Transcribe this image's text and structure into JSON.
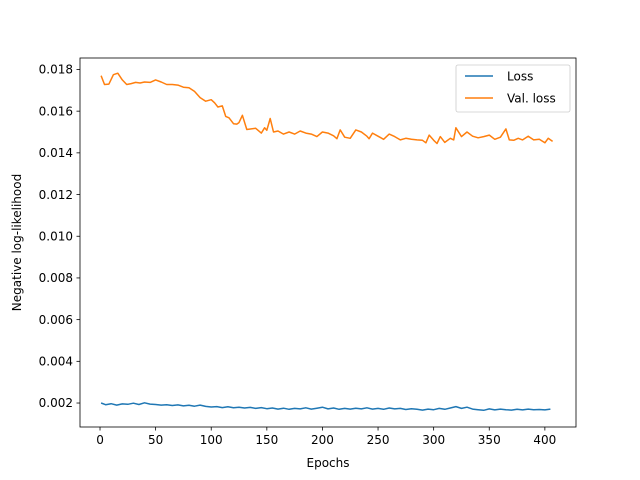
{
  "chart_data": {
    "type": "line",
    "title": "",
    "xlabel": "Epochs",
    "ylabel": "Negative log-likelihood",
    "xlim": [
      -18,
      428
    ],
    "ylim": [
      0.00085,
      0.01855
    ],
    "xticks": [
      0,
      50,
      100,
      150,
      200,
      250,
      300,
      350,
      400
    ],
    "xtick_labels": [
      "0",
      "50",
      "100",
      "150",
      "200",
      "250",
      "300",
      "350",
      "400"
    ],
    "yticks": [
      0.002,
      0.004,
      0.006,
      0.008,
      0.01,
      0.012,
      0.014,
      0.016,
      0.018
    ],
    "ytick_labels": [
      "0.002",
      "0.004",
      "0.006",
      "0.008",
      "0.010",
      "0.012",
      "0.014",
      "0.016",
      "0.018"
    ],
    "grid": false,
    "legend_position": "top-right",
    "series": [
      {
        "name": "Loss",
        "color": "#1f77b4",
        "x": [
          1,
          5,
          10,
          15,
          20,
          25,
          30,
          35,
          40,
          45,
          50,
          55,
          60,
          65,
          70,
          75,
          80,
          85,
          90,
          95,
          100,
          105,
          110,
          115,
          120,
          125,
          130,
          135,
          140,
          145,
          150,
          155,
          160,
          165,
          170,
          175,
          180,
          185,
          190,
          195,
          200,
          205,
          210,
          215,
          220,
          225,
          230,
          235,
          240,
          245,
          250,
          255,
          260,
          265,
          270,
          275,
          280,
          285,
          290,
          295,
          300,
          305,
          310,
          315,
          320,
          325,
          330,
          335,
          340,
          345,
          350,
          355,
          360,
          365,
          370,
          375,
          380,
          385,
          390,
          395,
          400,
          405
        ],
        "y": [
          0.002,
          0.00192,
          0.00197,
          0.0019,
          0.00196,
          0.00194,
          0.00199,
          0.00193,
          0.00201,
          0.00195,
          0.00193,
          0.0019,
          0.00192,
          0.00188,
          0.00191,
          0.00186,
          0.00189,
          0.00185,
          0.0019,
          0.00184,
          0.00181,
          0.00183,
          0.00178,
          0.00182,
          0.00177,
          0.0018,
          0.00176,
          0.00179,
          0.00174,
          0.00178,
          0.00173,
          0.00176,
          0.00171,
          0.00175,
          0.0017,
          0.00174,
          0.00172,
          0.00177,
          0.00171,
          0.00175,
          0.0018,
          0.00172,
          0.00176,
          0.0017,
          0.00174,
          0.00171,
          0.00175,
          0.00172,
          0.00177,
          0.00171,
          0.00174,
          0.0017,
          0.00176,
          0.00172,
          0.00174,
          0.00169,
          0.00173,
          0.0017,
          0.00166,
          0.00171,
          0.00168,
          0.00174,
          0.0017,
          0.00176,
          0.00183,
          0.00174,
          0.0018,
          0.00171,
          0.00168,
          0.00165,
          0.00172,
          0.00167,
          0.00171,
          0.00168,
          0.00166,
          0.0017,
          0.00167,
          0.00171,
          0.00168,
          0.00169,
          0.00167,
          0.00171
        ]
      },
      {
        "name": "Val. loss",
        "color": "#ff7f0e",
        "x": [
          1,
          4,
          8,
          12,
          16,
          20,
          24,
          28,
          32,
          36,
          40,
          45,
          50,
          55,
          60,
          65,
          70,
          75,
          80,
          85,
          90,
          95,
          100,
          103,
          106,
          110,
          113,
          116,
          120,
          123,
          125,
          128,
          132,
          136,
          140,
          145,
          148,
          150,
          153,
          156,
          160,
          165,
          170,
          175,
          180,
          185,
          190,
          195,
          200,
          205,
          210,
          213,
          216,
          220,
          225,
          230,
          235,
          240,
          242,
          245,
          250,
          255,
          260,
          265,
          270,
          275,
          280,
          285,
          290,
          293,
          296,
          300,
          303,
          306,
          310,
          315,
          318,
          320,
          325,
          330,
          335,
          340,
          345,
          350,
          355,
          360,
          365,
          368,
          372,
          376,
          380,
          385,
          390,
          395,
          400,
          403,
          407
        ],
        "y": [
          0.0177,
          0.01728,
          0.0173,
          0.01775,
          0.01782,
          0.0175,
          0.01728,
          0.01732,
          0.01738,
          0.01735,
          0.0174,
          0.01738,
          0.0175,
          0.0174,
          0.01728,
          0.01728,
          0.01725,
          0.01715,
          0.01712,
          0.01695,
          0.01665,
          0.01648,
          0.01655,
          0.0164,
          0.0162,
          0.01625,
          0.01575,
          0.01568,
          0.0154,
          0.01538,
          0.01545,
          0.0158,
          0.01512,
          0.01515,
          0.01518,
          0.01495,
          0.0152,
          0.01508,
          0.01565,
          0.015,
          0.01505,
          0.0149,
          0.015,
          0.0149,
          0.01505,
          0.01495,
          0.0149,
          0.01478,
          0.015,
          0.01495,
          0.01482,
          0.01468,
          0.0151,
          0.01475,
          0.0147,
          0.0151,
          0.015,
          0.0148,
          0.01468,
          0.01495,
          0.0148,
          0.01465,
          0.0149,
          0.01478,
          0.01462,
          0.0147,
          0.01465,
          0.01462,
          0.0146,
          0.01448,
          0.01485,
          0.0146,
          0.01445,
          0.01478,
          0.0145,
          0.0147,
          0.01462,
          0.0152,
          0.01478,
          0.015,
          0.0148,
          0.01472,
          0.01478,
          0.01485,
          0.01465,
          0.01475,
          0.01515,
          0.01462,
          0.0146,
          0.0147,
          0.01462,
          0.0148,
          0.01462,
          0.01465,
          0.01448,
          0.0147,
          0.01455
        ]
      }
    ]
  }
}
